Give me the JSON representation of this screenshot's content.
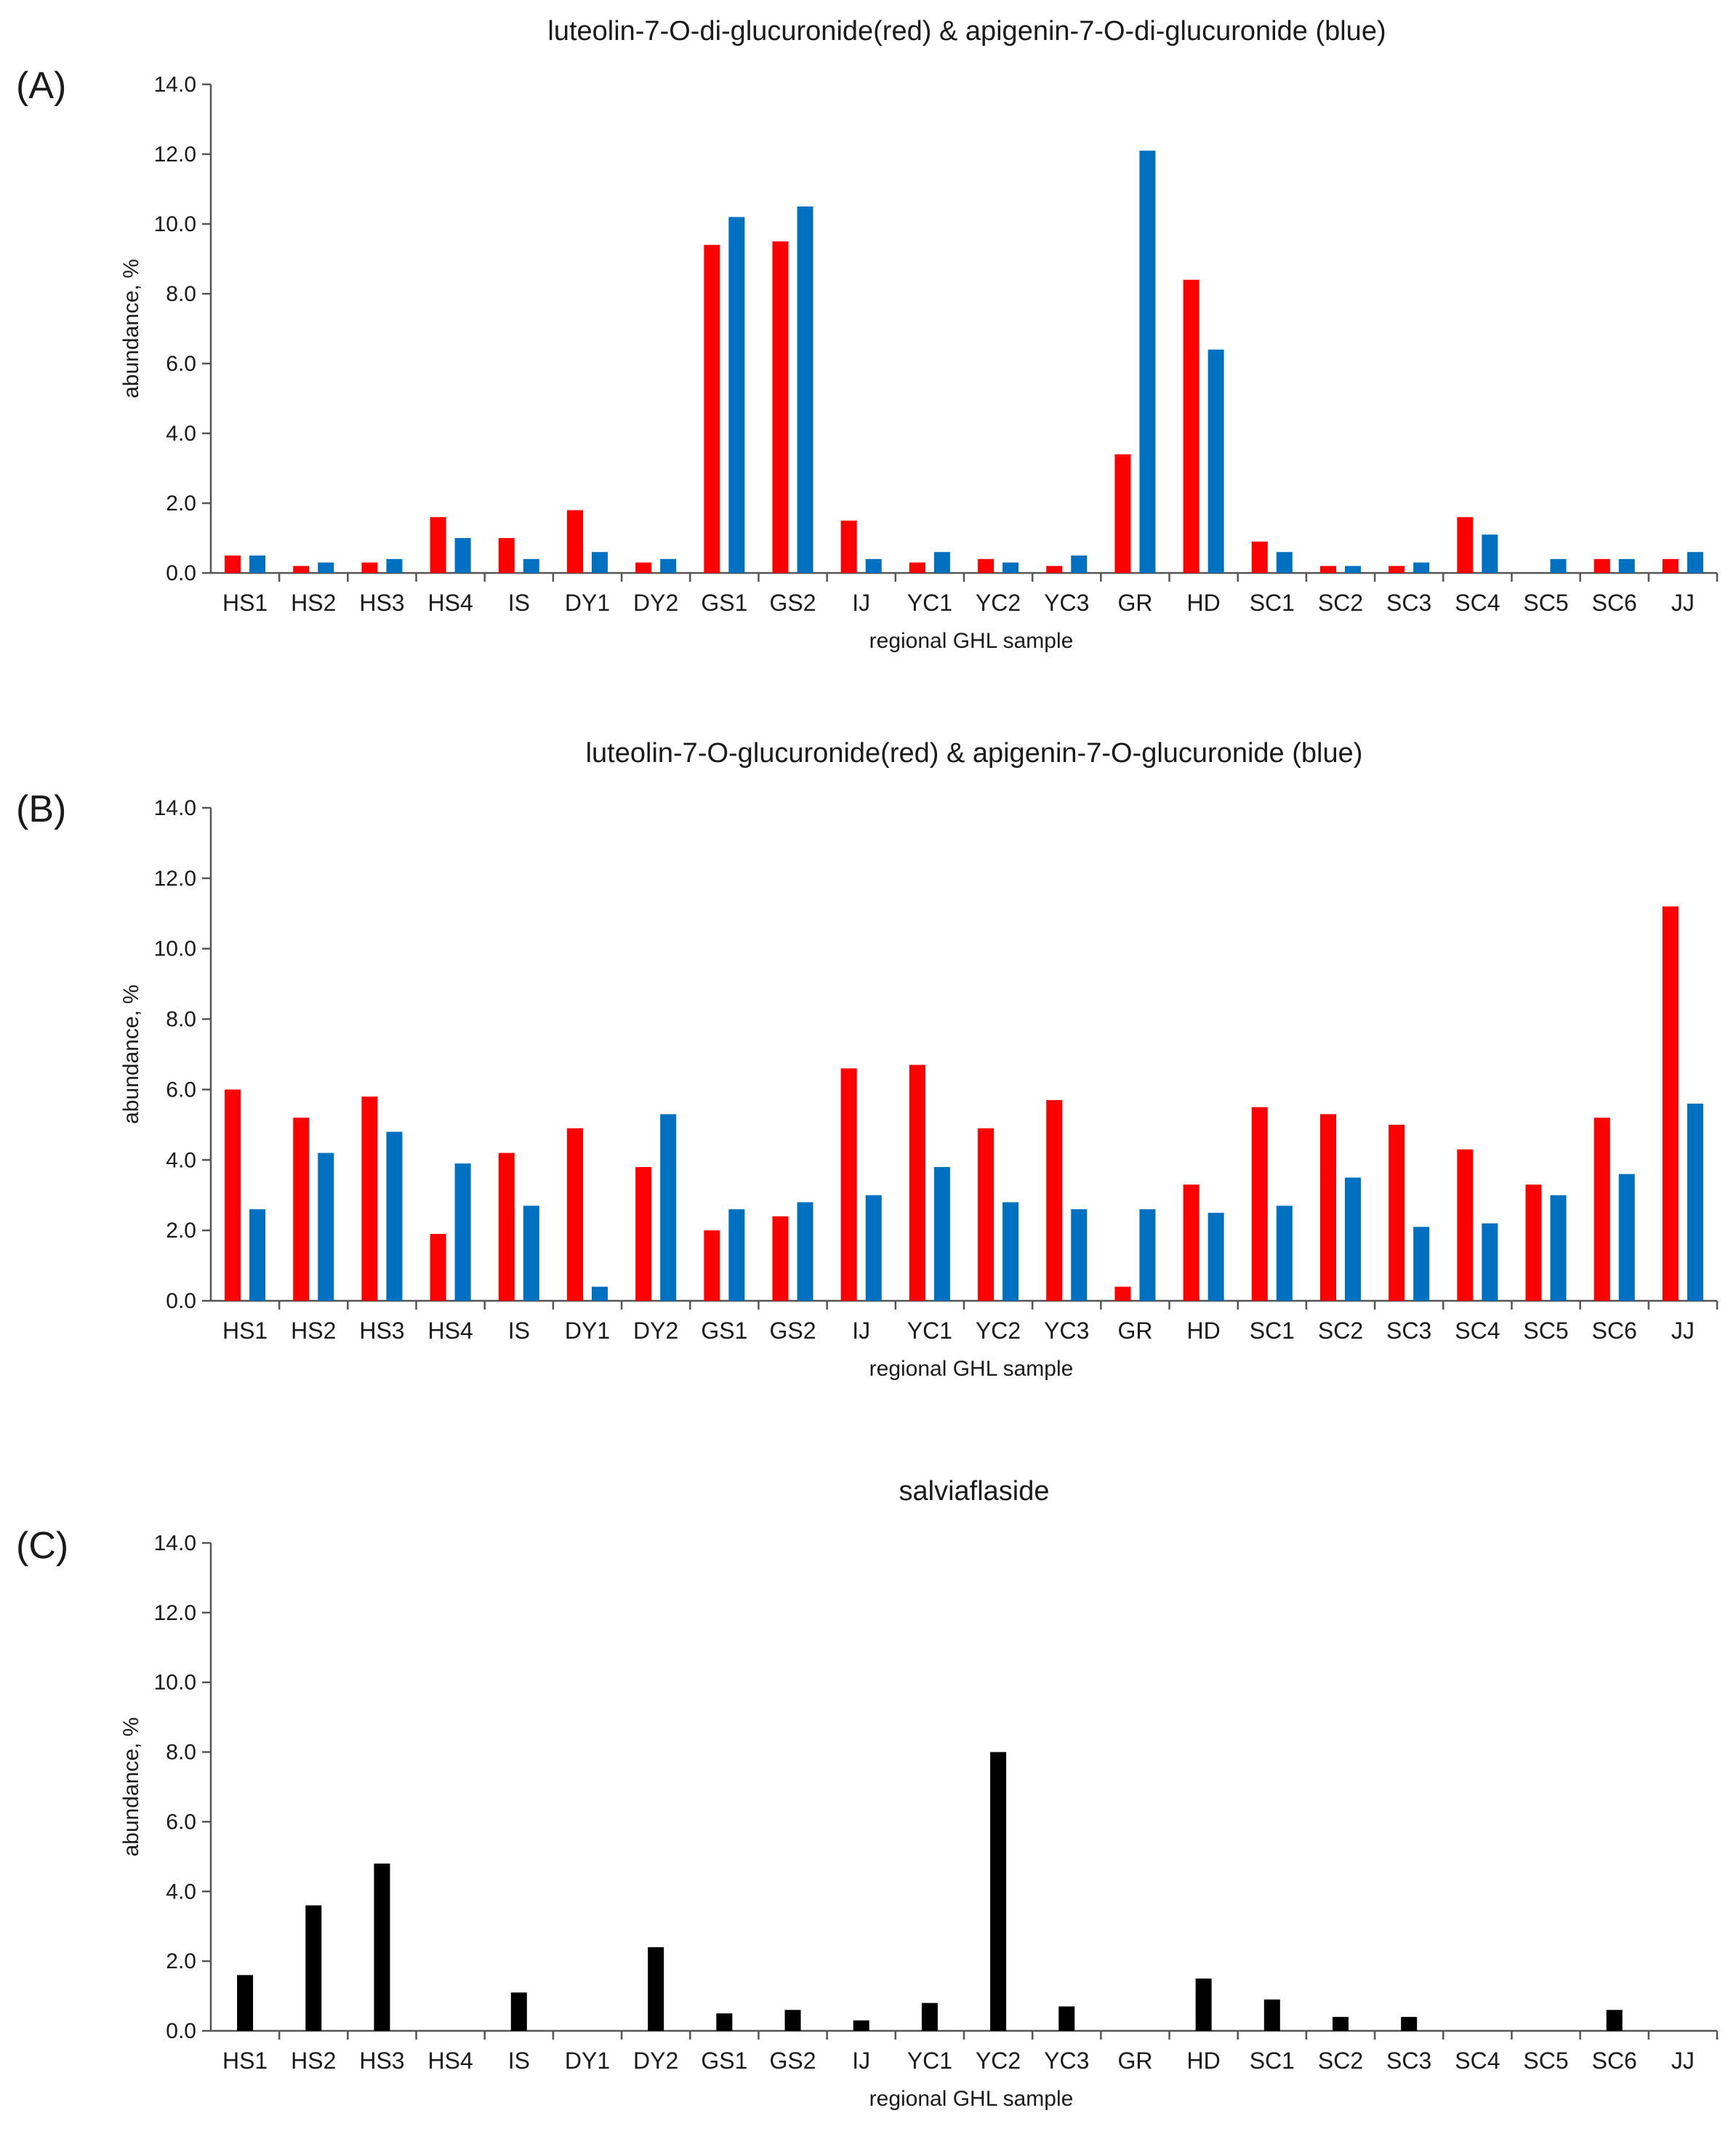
{
  "figure": {
    "panels": [
      "(A)",
      "(B)",
      "(C)"
    ]
  },
  "colors": {
    "red": "#ff0000",
    "blue": "#0070c0",
    "black": "#000000",
    "axis": "#555555"
  },
  "chart_data": [
    {
      "type": "bar",
      "title": "luteolin-7-O-di-glucuronide(red) & apigenin-7-O-di-glucuronide (blue)",
      "panel": "(A)",
      "xlabel": "regional GHL sample",
      "ylabel": "abundance, %",
      "ylim": [
        0,
        14
      ],
      "yticks": [
        "0.0",
        "2.0",
        "4.0",
        "6.0",
        "8.0",
        "10.0",
        "12.0",
        "14.0"
      ],
      "grid": false,
      "categories": [
        "HS1",
        "HS2",
        "HS3",
        "HS4",
        "IS",
        "DY1",
        "DY2",
        "GS1",
        "GS2",
        "IJ",
        "YC1",
        "YC2",
        "YC3",
        "GR",
        "HD",
        "SC1",
        "SC2",
        "SC3",
        "SC4",
        "SC5",
        "SC6",
        "JJ"
      ],
      "series": [
        {
          "color": "#ff0000",
          "values": [
            0.5,
            0.2,
            0.3,
            1.6,
            1.0,
            1.8,
            0.3,
            9.4,
            9.5,
            1.5,
            0.3,
            0.4,
            0.2,
            3.4,
            8.4,
            0.9,
            0.2,
            0.2,
            1.6,
            0.0,
            0.4,
            0.4
          ]
        },
        {
          "color": "#0070c0",
          "values": [
            0.5,
            0.3,
            0.4,
            1.0,
            0.4,
            0.6,
            0.4,
            10.2,
            10.5,
            0.4,
            0.6,
            0.3,
            0.5,
            12.1,
            6.4,
            0.6,
            0.2,
            0.3,
            1.1,
            0.4,
            0.4,
            0.6
          ]
        }
      ]
    },
    {
      "type": "bar",
      "title": "luteolin-7-O-glucuronide(red) & apigenin-7-O-glucuronide (blue)",
      "panel": "(B)",
      "xlabel": "regional GHL sample",
      "ylabel": "abundance, %",
      "ylim": [
        0,
        14
      ],
      "yticks": [
        "0.0",
        "2.0",
        "4.0",
        "6.0",
        "8.0",
        "10.0",
        "12.0",
        "14.0"
      ],
      "grid": false,
      "categories": [
        "HS1",
        "HS2",
        "HS3",
        "HS4",
        "IS",
        "DY1",
        "DY2",
        "GS1",
        "GS2",
        "IJ",
        "YC1",
        "YC2",
        "YC3",
        "GR",
        "HD",
        "SC1",
        "SC2",
        "SC3",
        "SC4",
        "SC5",
        "SC6",
        "JJ"
      ],
      "series": [
        {
          "color": "#ff0000",
          "values": [
            6.0,
            5.2,
            5.8,
            1.9,
            4.2,
            4.9,
            3.8,
            2.0,
            2.4,
            6.6,
            6.7,
            4.9,
            5.7,
            0.4,
            3.3,
            5.5,
            5.3,
            5.0,
            4.3,
            3.3,
            5.2,
            11.2
          ]
        },
        {
          "color": "#0070c0",
          "values": [
            2.6,
            4.2,
            4.8,
            3.9,
            2.7,
            0.4,
            5.3,
            2.6,
            2.8,
            3.0,
            3.8,
            2.8,
            2.6,
            2.6,
            2.5,
            2.7,
            3.5,
            2.1,
            2.2,
            3.0,
            3.6,
            5.6
          ]
        }
      ]
    },
    {
      "type": "bar",
      "title": "salviaflaside",
      "panel": "(C)",
      "xlabel": "regional GHL sample",
      "ylabel": "abundance, %",
      "ylim": [
        0,
        14
      ],
      "yticks": [
        "0.0",
        "2.0",
        "4.0",
        "6.0",
        "8.0",
        "10.0",
        "12.0",
        "14.0"
      ],
      "grid": false,
      "categories": [
        "HS1",
        "HS2",
        "HS3",
        "HS4",
        "IS",
        "DY1",
        "DY2",
        "GS1",
        "GS2",
        "IJ",
        "YC1",
        "YC2",
        "YC3",
        "GR",
        "HD",
        "SC1",
        "SC2",
        "SC3",
        "SC4",
        "SC5",
        "SC6",
        "JJ"
      ],
      "series": [
        {
          "color": "#000000",
          "values": [
            1.6,
            3.6,
            4.8,
            0.0,
            1.1,
            0.0,
            2.4,
            0.5,
            0.6,
            0.3,
            0.8,
            8.0,
            0.7,
            0.0,
            1.5,
            0.9,
            0.4,
            0.4,
            0.0,
            0.0,
            0.6,
            0.0
          ]
        }
      ]
    }
  ]
}
